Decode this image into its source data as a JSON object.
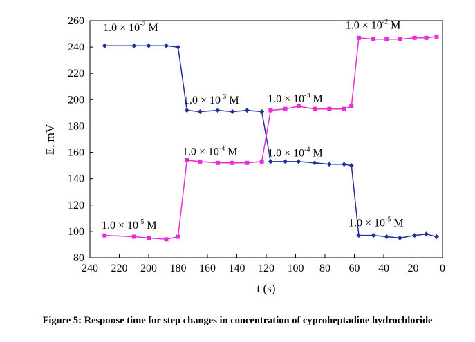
{
  "figure": {
    "caption": "Figure 5: Response time for step changes in concentration of cyproheptadine hydrochloride"
  },
  "chart_data": {
    "type": "line",
    "title": "",
    "xlabel": "t (s)",
    "ylabel": "E, mV",
    "xlim": [
      240,
      0
    ],
    "ylim": [
      80,
      260
    ],
    "x_reversed": true,
    "xticks": [
      240,
      220,
      200,
      180,
      160,
      140,
      120,
      100,
      80,
      60,
      40,
      20,
      0
    ],
    "yticks": [
      80,
      100,
      120,
      140,
      160,
      180,
      200,
      220,
      240,
      260
    ],
    "grid": false,
    "legend": "none",
    "series": [
      {
        "color": "#1f2f9c",
        "marker": "diamond",
        "x": [
          230,
          210,
          200,
          188,
          180,
          174,
          165,
          153,
          143,
          133,
          123,
          117,
          107,
          98,
          87,
          77,
          67,
          62,
          57,
          47,
          38,
          29,
          19,
          11,
          4
        ],
        "y": [
          241,
          241,
          241,
          241,
          240,
          192,
          191,
          192,
          191,
          192,
          191,
          153,
          153,
          153,
          152,
          151,
          151,
          150,
          97,
          97,
          96,
          95,
          97,
          98,
          96
        ]
      },
      {
        "color": "#e62ed2",
        "marker": "square",
        "x": [
          230,
          210,
          200,
          188,
          180,
          174,
          165,
          153,
          143,
          133,
          123,
          117,
          107,
          98,
          87,
          77,
          67,
          62,
          57,
          47,
          38,
          29,
          19,
          11,
          4
        ],
        "y": [
          97,
          96,
          95,
          94,
          96,
          154,
          153,
          152,
          152,
          152,
          153,
          192,
          193,
          195,
          193,
          193,
          193,
          195,
          247,
          246,
          246,
          246,
          247,
          247,
          248
        ]
      }
    ],
    "annotations": [
      {
        "mantissa": "1.0 × 10",
        "exp": "-2",
        "unit": " M",
        "x": 231,
        "y": 252
      },
      {
        "mantissa": "1.0 × 10",
        "exp": "-3",
        "unit": " M",
        "x": 176,
        "y": 197
      },
      {
        "mantissa": "1.0 × 10",
        "exp": "-4",
        "unit": " M",
        "x": 177,
        "y": 158
      },
      {
        "mantissa": "1.0 × 10",
        "exp": "-5",
        "unit": " M",
        "x": 232,
        "y": 102
      },
      {
        "mantissa": "1.0 × 10",
        "exp": "-3",
        "unit": " M",
        "x": 119,
        "y": 198
      },
      {
        "mantissa": "1.0 × 10",
        "exp": "-4",
        "unit": " M",
        "x": 119,
        "y": 157
      },
      {
        "mantissa": "1.0 × 10",
        "exp": "-2",
        "unit": " M",
        "x": 66,
        "y": 254
      },
      {
        "mantissa": "1.0 × 10",
        "exp": "-5",
        "unit": " M",
        "x": 64,
        "y": 104
      }
    ]
  }
}
